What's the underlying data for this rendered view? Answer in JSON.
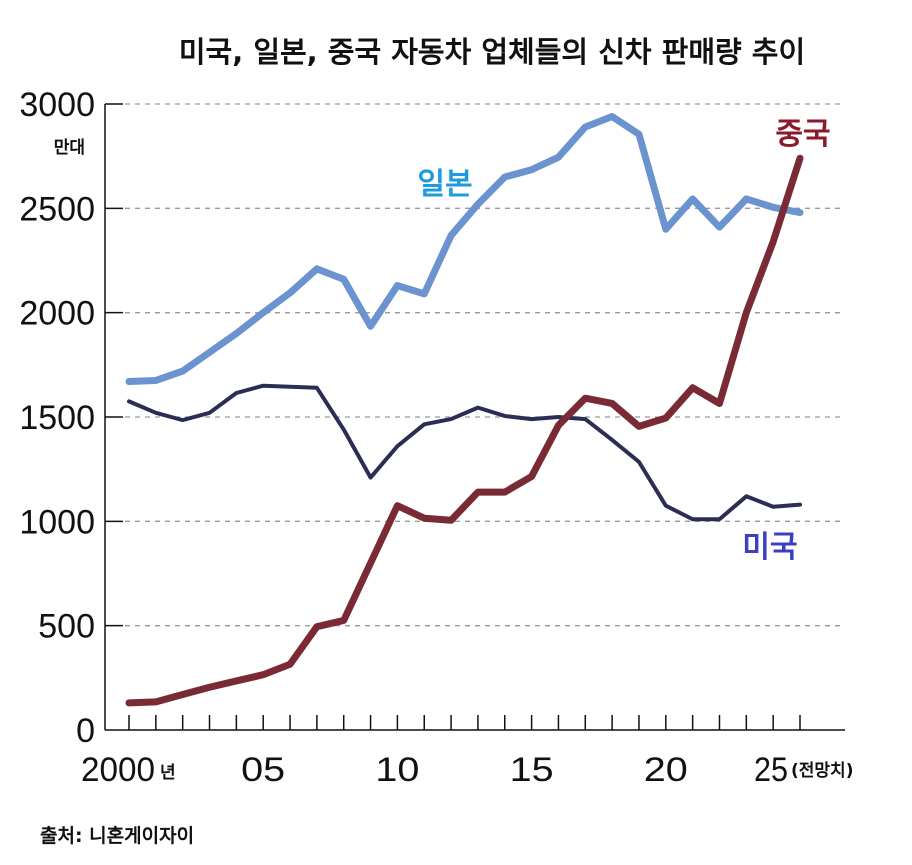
{
  "chart_data": {
    "type": "line",
    "title": "미국, 일본, 중국 자동차 업체들의 신차 판매량 추이",
    "y_unit": "만대",
    "x_unit": "년",
    "x_note": "(전망치)",
    "ylim": [
      0,
      3000
    ],
    "yticks": [
      "0",
      "500",
      "1000",
      "1500",
      "2000",
      "2500",
      "3000"
    ],
    "xlim": [
      2000,
      2025
    ],
    "xticks": [
      {
        "value": 2000,
        "label": "2000"
      },
      {
        "value": 2005,
        "label": "05"
      },
      {
        "value": 2010,
        "label": "10"
      },
      {
        "value": 2015,
        "label": "15"
      },
      {
        "value": 2020,
        "label": "20"
      },
      {
        "value": 2025,
        "label": "25"
      }
    ],
    "grid": "horizontal dashed",
    "x": [
      2000,
      2001,
      2002,
      2003,
      2004,
      2005,
      2006,
      2007,
      2008,
      2009,
      2010,
      2011,
      2012,
      2013,
      2014,
      2015,
      2016,
      2017,
      2018,
      2019,
      2020,
      2021,
      2022,
      2023,
      2024,
      2025
    ],
    "series": [
      {
        "name": "일본",
        "color": "#6b93cf",
        "label_color": "#1e9be0",
        "width": 7,
        "values": [
          1670,
          1675,
          1720,
          1810,
          1900,
          2000,
          2095,
          2210,
          2160,
          1935,
          2130,
          2090,
          2370,
          2520,
          2650,
          2685,
          2745,
          2890,
          2940,
          2855,
          2400,
          2545,
          2410,
          2545,
          2505,
          2480
        ]
      },
      {
        "name": "미국",
        "color": "#2b2d55",
        "label_color": "#3b3fc0",
        "width": 4,
        "values": [
          1575,
          1520,
          1485,
          1520,
          1615,
          1650,
          1645,
          1640,
          1440,
          1210,
          1360,
          1465,
          1490,
          1545,
          1505,
          1490,
          1500,
          1490,
          1390,
          1285,
          1075,
          1010,
          1010,
          1120,
          1070,
          1080
        ]
      },
      {
        "name": "중국",
        "color": "#7a2a35",
        "label_color": "#8b1a2b",
        "width": 7,
        "values": [
          130,
          135,
          170,
          205,
          235,
          265,
          315,
          495,
          525,
          800,
          1075,
          1015,
          1005,
          1140,
          1140,
          1215,
          1460,
          1590,
          1565,
          1455,
          1495,
          1640,
          1565,
          2000,
          2340,
          2740
        ]
      }
    ]
  },
  "source": "출처: 니혼게이자이"
}
